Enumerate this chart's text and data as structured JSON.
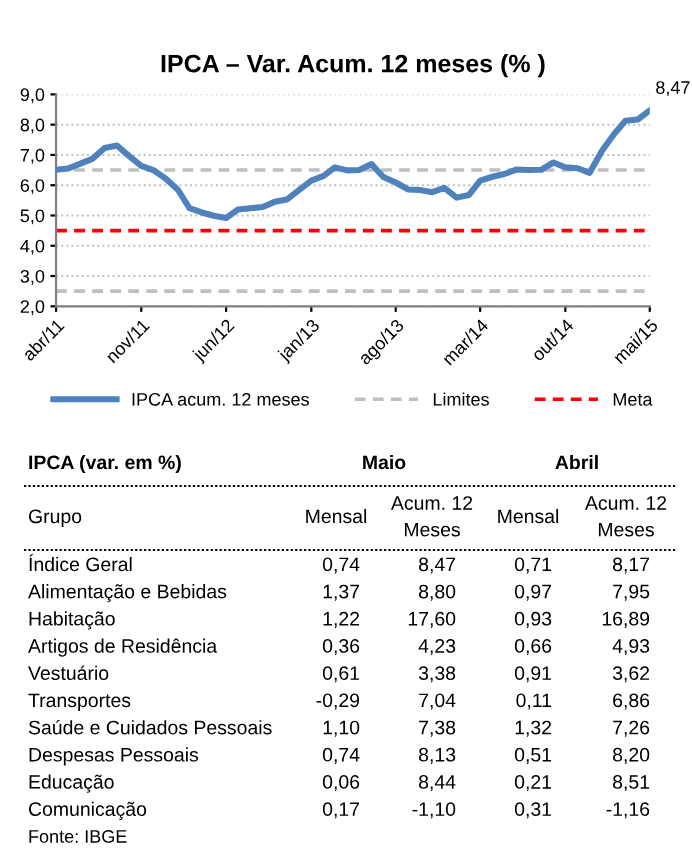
{
  "chart_data": [
    {
      "type": "line",
      "title": "IPCA – Var. Acum. 12 meses (% )",
      "x": [
        "2011-04",
        "2011-05",
        "2011-06",
        "2011-07",
        "2011-08",
        "2011-09",
        "2011-10",
        "2011-11",
        "2011-12",
        "2012-01",
        "2012-02",
        "2012-03",
        "2012-04",
        "2012-05",
        "2012-06",
        "2012-07",
        "2012-08",
        "2012-09",
        "2012-10",
        "2012-11",
        "2012-12",
        "2013-01",
        "2013-02",
        "2013-03",
        "2013-04",
        "2013-05",
        "2013-06",
        "2013-07",
        "2013-08",
        "2013-09",
        "2013-10",
        "2013-11",
        "2013-12",
        "2014-01",
        "2014-02",
        "2014-03",
        "2014-04",
        "2014-05",
        "2014-06",
        "2014-07",
        "2014-08",
        "2014-09",
        "2014-10",
        "2014-11",
        "2014-12",
        "2015-01",
        "2015-02",
        "2015-03",
        "2015-04",
        "2015-05"
      ],
      "series": [
        {
          "name": "IPCA acum. 12 meses",
          "color": "#4f81bd",
          "values": [
            6.51,
            6.55,
            6.71,
            6.87,
            7.23,
            7.31,
            6.97,
            6.64,
            6.5,
            6.22,
            5.85,
            5.24,
            5.1,
            4.99,
            4.92,
            5.2,
            5.24,
            5.28,
            5.45,
            5.53,
            5.84,
            6.15,
            6.31,
            6.59,
            6.49,
            6.5,
            6.7,
            6.27,
            6.09,
            5.86,
            5.84,
            5.77,
            5.91,
            5.59,
            5.68,
            6.15,
            6.28,
            6.37,
            6.52,
            6.5,
            6.51,
            6.75,
            6.59,
            6.56,
            6.41,
            7.14,
            7.7,
            8.13,
            8.17,
            8.47
          ]
        }
      ],
      "ref_lines": [
        {
          "axis": "y",
          "value": 6.5,
          "label": "Limites",
          "color": "#bfbfbf",
          "line_style": "dashed"
        },
        {
          "axis": "y",
          "value": 2.5,
          "color": "#bfbfbf",
          "line_style": "dashed"
        },
        {
          "axis": "y",
          "value": 4.5,
          "label": "Meta",
          "color": "#ff0000",
          "line_style": "dashed"
        }
      ],
      "annotations": [
        {
          "text": "8,47",
          "x": "2015-05",
          "y": 8.47
        }
      ],
      "xlim": [
        "2011-04",
        "2015-05"
      ],
      "xticks": [
        {
          "value": "2011-04",
          "label": "abr/11"
        },
        {
          "value": "2011-11",
          "label": "nov/11"
        },
        {
          "value": "2012-06",
          "label": "jun/12"
        },
        {
          "value": "2013-01",
          "label": "jan/13"
        },
        {
          "value": "2013-08",
          "label": "ago/13"
        },
        {
          "value": "2014-03",
          "label": "mar/14"
        },
        {
          "value": "2014-10",
          "label": "out/14"
        },
        {
          "value": "2015-05",
          "label": "mai/15"
        }
      ],
      "ylim": [
        2,
        9
      ],
      "yticks": [
        {
          "value": 2,
          "label": "2,0"
        },
        {
          "value": 3,
          "label": "3,0"
        },
        {
          "value": 4,
          "label": "4,0"
        },
        {
          "value": 5,
          "label": "5,0"
        },
        {
          "value": 6,
          "label": "6,0"
        },
        {
          "value": 7,
          "label": "7,0"
        },
        {
          "value": 8,
          "label": "8,0"
        },
        {
          "value": 9,
          "label": "9,0"
        }
      ],
      "grid": "y",
      "legend": "bottom",
      "line_style": "solid"
    },
    {
      "type": "other",
      "title": "IPCA (var. em %)",
      "categories": [
        "Índice Geral",
        "Alimentação e Bebidas",
        "Habitação",
        "Artigos de Residência",
        "Vestuário",
        "Transportes",
        "Saúde e Cuidados Pessoais",
        "Despesas Pessoais",
        "Educação",
        "Comunicação"
      ],
      "series": [
        {
          "name": "Mensal",
          "values": [
            0.74,
            1.37,
            1.22,
            0.36,
            0.61,
            -0.29,
            1.1,
            0.74,
            0.06,
            0.17
          ],
          "value_labels": [
            "0,74",
            "1,37",
            "1,22",
            "0,36",
            "0,61",
            "-0,29",
            "1,10",
            "0,74",
            "0,06",
            "0,17"
          ]
        },
        {
          "name": "Acum. 12\nMeses",
          "values": [
            8.47,
            8.8,
            17.6,
            4.23,
            3.38,
            7.04,
            7.38,
            8.13,
            8.44,
            -1.1
          ],
          "value_labels": [
            "8,47",
            "8,80",
            "17,60",
            "4,23",
            "3,38",
            "7,04",
            "7,38",
            "8,13",
            "8,44",
            "-1,10"
          ]
        },
        {
          "name": "Mensal",
          "values": [
            0.71,
            0.97,
            0.93,
            0.66,
            0.91,
            0.11,
            1.32,
            0.51,
            0.21,
            0.31
          ],
          "value_labels": [
            "0,71",
            "0,97",
            "0,93",
            "0,66",
            "0,91",
            "0,11",
            "1,32",
            "0,51",
            "0,21",
            "0,31"
          ]
        },
        {
          "name": "Acum. 12\nMeses",
          "values": [
            8.17,
            7.95,
            16.89,
            4.93,
            3.62,
            6.86,
            7.26,
            8.2,
            8.51,
            -1.16
          ],
          "value_labels": [
            "8,17",
            "7,95",
            "16,89",
            "4,93",
            "3,62",
            "6,86",
            "7,26",
            "8,20",
            "8,51",
            "-1,16"
          ]
        }
      ],
      "annotations": [
        "Grupo",
        "Maio",
        "Abril",
        "Fonte: IBGE"
      ]
    }
  ]
}
